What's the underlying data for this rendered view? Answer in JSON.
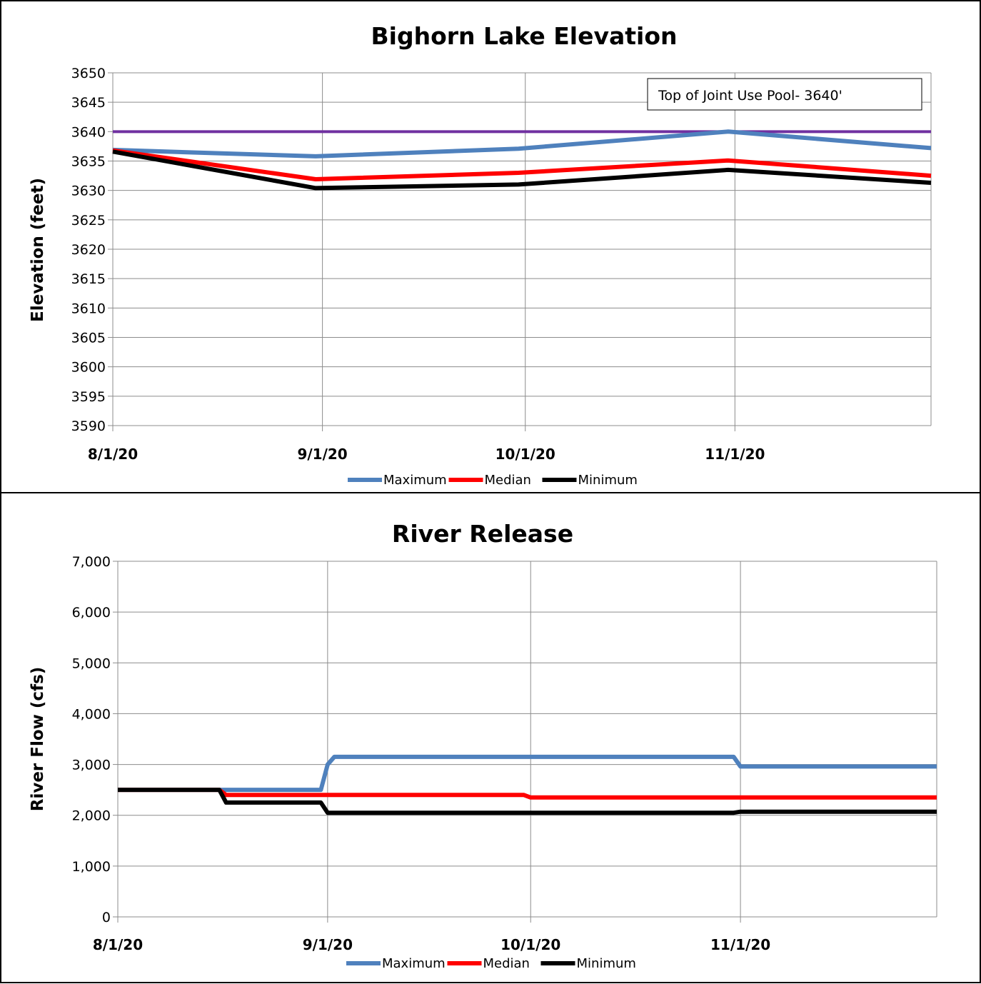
{
  "chart_data": [
    {
      "type": "line",
      "title": "Bighorn Lake Elevation",
      "xlabel": "",
      "ylabel": "Elevation (feet)",
      "ylim": [
        3590,
        3650
      ],
      "yticks": [
        3590,
        3595,
        3600,
        3605,
        3610,
        3615,
        3620,
        3625,
        3630,
        3635,
        3640,
        3645,
        3650
      ],
      "ytick_labels": [
        "3590",
        "3595",
        "3600",
        "3605",
        "3610",
        "3615",
        "3620",
        "3625",
        "3630",
        "3635",
        "3640",
        "3645",
        "3650"
      ],
      "xlim": [
        "8/1/20",
        "11/30/20"
      ],
      "xticks": [
        "8/1/20",
        "9/1/20",
        "10/1/20",
        "11/1/20"
      ],
      "grid": true,
      "legend": "bottom",
      "annotation": {
        "text": "Top of Joint Use Pool- 3640'",
        "y_value": 3640,
        "color": "#7030a0"
      },
      "series": [
        {
          "name": "Maximum",
          "color": "#4f81bd",
          "x": [
            "8/1/20",
            "8/31/20",
            "9/30/20",
            "10/31/20",
            "11/30/20"
          ],
          "values": [
            3636.9,
            3635.8,
            3637.1,
            3640.0,
            3637.2
          ]
        },
        {
          "name": "Median",
          "color": "#ff0000",
          "x": [
            "8/1/20",
            "8/31/20",
            "9/30/20",
            "10/31/20",
            "11/30/20"
          ],
          "values": [
            3636.8,
            3631.9,
            3633.0,
            3635.1,
            3632.5
          ]
        },
        {
          "name": "Minimum",
          "color": "#000000",
          "x": [
            "8/1/20",
            "8/31/20",
            "9/30/20",
            "10/31/20",
            "11/30/20"
          ],
          "values": [
            3636.6,
            3630.4,
            3631.0,
            3633.5,
            3631.3
          ]
        }
      ]
    },
    {
      "type": "line",
      "title": "River Release",
      "xlabel": "",
      "ylabel": "River Flow (cfs)",
      "ylim": [
        0,
        7000
      ],
      "yticks": [
        0,
        1000,
        2000,
        3000,
        4000,
        5000,
        6000,
        7000
      ],
      "ytick_labels": [
        "0",
        "1,000",
        "2,000",
        "3,000",
        "4,000",
        "5,000",
        "6,000",
        "7,000"
      ],
      "xlim": [
        "8/1/20",
        "11/30/20"
      ],
      "xticks": [
        "8/1/20",
        "9/1/20",
        "10/1/20",
        "11/1/20"
      ],
      "grid": true,
      "legend": "bottom",
      "series": [
        {
          "name": "Maximum",
          "color": "#4f81bd",
          "x": [
            "8/1/20",
            "8/16/20",
            "8/31/20",
            "9/1/20",
            "9/2/20",
            "10/31/20",
            "11/1/20",
            "11/30/20"
          ],
          "values": [
            2500,
            2500,
            2500,
            3000,
            3150,
            3150,
            2960,
            2960
          ]
        },
        {
          "name": "Median",
          "color": "#ff0000",
          "x": [
            "8/1/20",
            "8/16/20",
            "8/17/20",
            "9/30/20",
            "10/1/20",
            "11/30/20"
          ],
          "values": [
            2500,
            2500,
            2400,
            2400,
            2350,
            2350
          ]
        },
        {
          "name": "Minimum",
          "color": "#000000",
          "x": [
            "8/1/20",
            "8/16/20",
            "8/17/20",
            "8/31/20",
            "9/1/20",
            "10/31/20",
            "11/1/20",
            "11/30/20"
          ],
          "values": [
            2500,
            2500,
            2250,
            2250,
            2050,
            2050,
            2070,
            2070
          ]
        }
      ]
    }
  ]
}
